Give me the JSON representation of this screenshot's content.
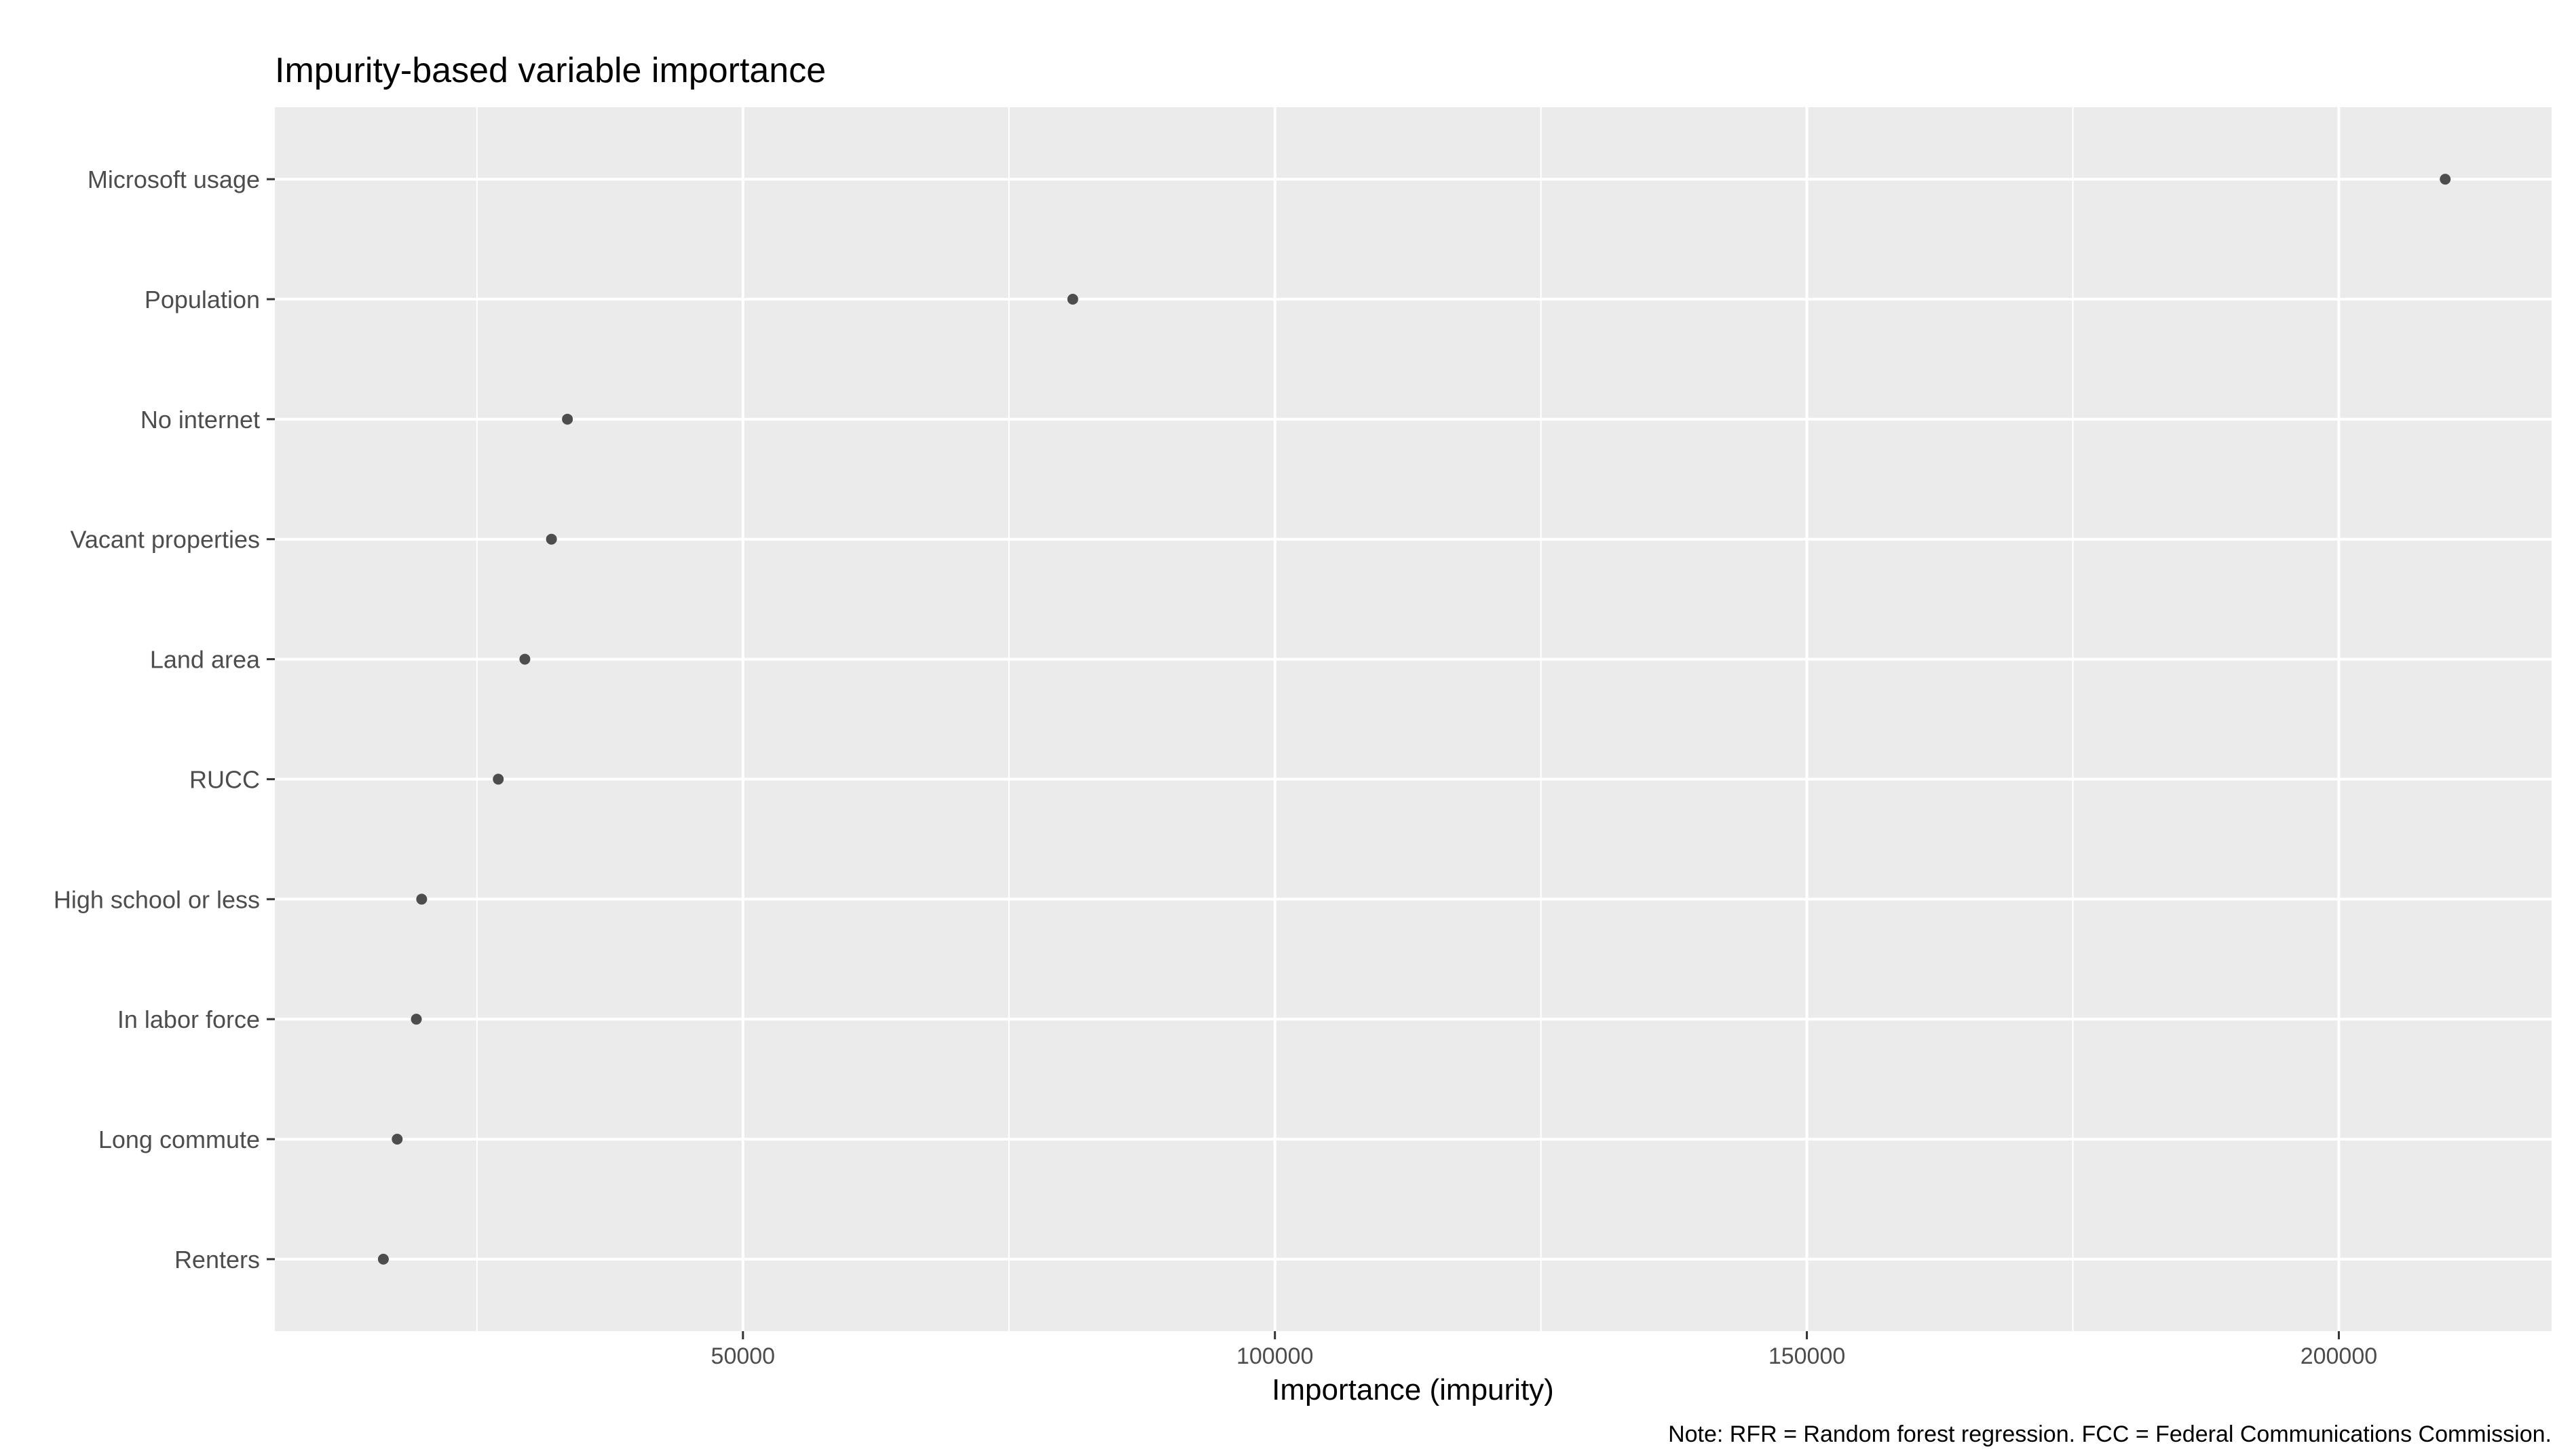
{
  "chart_data": {
    "type": "scatter",
    "title": "Impurity-based variable importance",
    "xlabel": "Importance (impurity)",
    "ylabel": "",
    "caption": "Note: RFR = Random forest regression. FCC = Federal Communications Commission.",
    "xlim": [
      6000,
      220000
    ],
    "x_ticks": [
      50000,
      100000,
      150000,
      200000
    ],
    "x_tick_labels": [
      "50000",
      "100000",
      "150000",
      "200000"
    ],
    "grid": true,
    "panel_background": "#ebebeb",
    "point_color": "#4d4d4d",
    "categories": [
      "Microsoft usage",
      "Population",
      "No internet",
      "Vacant properties",
      "Land area",
      "RUCC",
      "High school or less",
      "In labor force",
      "Long commute",
      "Renters"
    ],
    "values": [
      210000,
      81000,
      33500,
      32000,
      29500,
      27000,
      19800,
      19300,
      17500,
      16200
    ]
  }
}
